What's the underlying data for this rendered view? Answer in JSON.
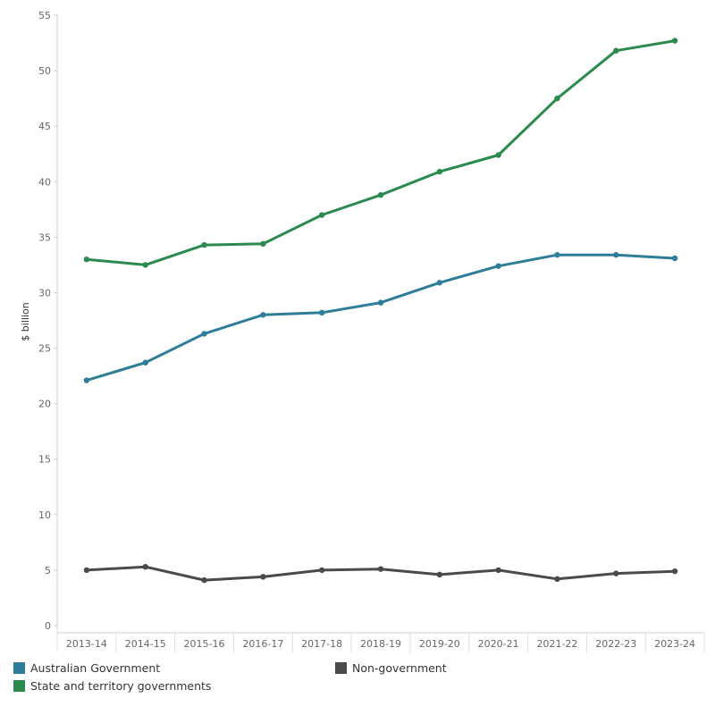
{
  "chart_data": {
    "type": "line",
    "ylabel": "$ billion",
    "xlabel": "",
    "ylim": [
      0,
      55
    ],
    "yticks": [
      0,
      5,
      10,
      15,
      20,
      25,
      30,
      35,
      40,
      45,
      50,
      55
    ],
    "grid": false,
    "legend_position": "bottom",
    "categories": [
      "2013-14",
      "2014-15",
      "2015-16",
      "2016-17",
      "2017-18",
      "2018-19",
      "2019-20",
      "2020-21",
      "2021-22",
      "2022-23",
      "2023-24"
    ],
    "series": [
      {
        "name": "Australian Government",
        "color": "#2e7d99",
        "values": [
          22.1,
          23.7,
          26.3,
          28.0,
          28.2,
          29.1,
          30.9,
          32.4,
          33.4,
          33.4,
          33.1
        ]
      },
      {
        "name": "State and territory governments",
        "color": "#2b8a4d",
        "values": [
          33.0,
          32.5,
          34.3,
          34.4,
          37.0,
          38.8,
          40.9,
          42.4,
          47.5,
          51.8,
          52.7
        ]
      },
      {
        "name": "Non-government",
        "color": "#4a4a4a",
        "values": [
          5.0,
          5.3,
          4.1,
          4.4,
          5.0,
          5.1,
          4.6,
          5.0,
          4.2,
          4.7,
          4.9
        ]
      }
    ]
  }
}
